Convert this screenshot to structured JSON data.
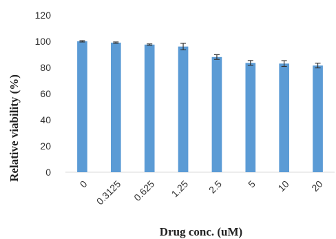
{
  "chart_data": {
    "type": "bar",
    "title": "",
    "xlabel": "Drug conc. (uM)",
    "ylabel": "Relative viability (%)",
    "categories": [
      "0",
      "0.3125",
      "0.625",
      "1.25",
      "2.5",
      "5",
      "10",
      "20"
    ],
    "values": [
      100,
      99,
      97.5,
      96,
      88,
      83.5,
      83,
      81.5
    ],
    "errors": [
      0.5,
      0.5,
      0.5,
      2.5,
      1.8,
      1.8,
      2.2,
      1.8
    ],
    "ylim": [
      0,
      120
    ],
    "yticks": [
      0,
      20,
      40,
      60,
      80,
      100,
      120
    ],
    "grid": false,
    "legend": "none",
    "colors": {
      "bar": "#5B9BD5",
      "error_bar": "#333333",
      "axis": "#d9d9d9"
    }
  }
}
